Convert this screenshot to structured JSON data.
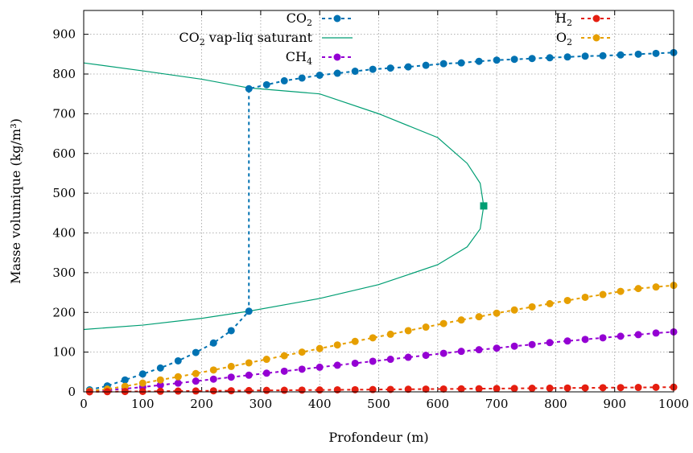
{
  "chart_data": {
    "type": "line",
    "xlabel": "Profondeur (m)",
    "ylabel": "Masse volumique (kg/m³)",
    "xlim": [
      0,
      1000
    ],
    "ylim": [
      0,
      960
    ],
    "x_ticks": [
      "0",
      "100",
      "200",
      "300",
      "400",
      "500",
      "600",
      "700",
      "800",
      "900",
      "1000"
    ],
    "y_ticks": [
      "0",
      "100",
      "200",
      "300",
      "400",
      "500",
      "600",
      "700",
      "800",
      "900"
    ],
    "grid": true,
    "legend_placement": "top",
    "series": [
      {
        "name": "CO2",
        "color": "#0072b2",
        "style": "dashed-points",
        "x": [
          10,
          40,
          70,
          100,
          130,
          160,
          190,
          220,
          250,
          280,
          280,
          310,
          340,
          370,
          400,
          430,
          460,
          490,
          520,
          550,
          580,
          610,
          640,
          670,
          700,
          730,
          760,
          790,
          820,
          850,
          880,
          910,
          940,
          970,
          1000
        ],
        "y": [
          5,
          15,
          30,
          45,
          60,
          78,
          99,
          123,
          154,
          203,
          763,
          773,
          783,
          790,
          797,
          802,
          807,
          812,
          815,
          818,
          822,
          826,
          828,
          832,
          835,
          837,
          839,
          841,
          843,
          845,
          846,
          848,
          850,
          852,
          854
        ]
      },
      {
        "name": "CO2 vap-liq saturant",
        "color": "#009e73",
        "style": "line",
        "x": [
          0,
          100,
          200,
          280,
          400,
          500,
          600,
          650,
          672,
          678,
          672,
          650,
          600,
          500,
          400,
          280,
          200,
          100,
          0
        ],
        "y": [
          157,
          168,
          185,
          203,
          235,
          270,
          320,
          365,
          410,
          468,
          525,
          575,
          640,
          700,
          750,
          765,
          787,
          808,
          828
        ]
      },
      {
        "name": "CH4",
        "color": "#9400d3",
        "style": "dashed-points",
        "x": [
          10,
          40,
          70,
          100,
          130,
          160,
          190,
          220,
          250,
          280,
          310,
          340,
          370,
          400,
          430,
          460,
          490,
          520,
          550,
          580,
          610,
          640,
          670,
          700,
          730,
          760,
          790,
          820,
          850,
          880,
          910,
          940,
          970,
          1000
        ],
        "y": [
          1,
          4,
          8,
          12,
          17,
          22,
          27,
          32,
          37,
          42,
          47,
          52,
          57,
          62,
          67,
          72,
          77,
          82,
          87,
          92,
          97,
          102,
          106,
          110,
          115,
          119,
          124,
          128,
          132,
          136,
          140,
          144,
          148,
          151
        ]
      },
      {
        "name": "H2",
        "color": "#e51e10",
        "style": "dashed-points",
        "x": [
          10,
          40,
          70,
          100,
          130,
          160,
          190,
          220,
          250,
          280,
          310,
          340,
          370,
          400,
          430,
          460,
          490,
          520,
          550,
          580,
          610,
          640,
          670,
          700,
          730,
          760,
          790,
          820,
          850,
          880,
          910,
          940,
          970,
          1000
        ],
        "y": [
          0.1,
          0.4,
          0.8,
          1.1,
          1.5,
          1.9,
          2.2,
          2.6,
          2.9,
          3.3,
          3.7,
          4.0,
          4.4,
          4.7,
          5.1,
          5.4,
          5.8,
          6.2,
          6.5,
          6.9,
          7.2,
          7.6,
          7.9,
          8.3,
          8.6,
          9.0,
          9.3,
          9.7,
          10.0,
          10.4,
          10.7,
          11.1,
          11.4,
          11.8
        ]
      },
      {
        "name": "O2",
        "color": "#e69f00",
        "style": "dashed-points",
        "x": [
          10,
          40,
          70,
          100,
          130,
          160,
          190,
          220,
          250,
          280,
          310,
          340,
          370,
          400,
          430,
          460,
          490,
          520,
          550,
          580,
          610,
          640,
          670,
          700,
          730,
          760,
          790,
          820,
          850,
          880,
          910,
          940,
          970,
          1000
        ],
        "y": [
          2,
          7,
          14,
          22,
          30,
          38,
          46,
          55,
          64,
          73,
          82,
          91,
          100,
          109,
          118,
          127,
          136,
          145,
          154,
          163,
          172,
          181,
          189,
          198,
          206,
          214,
          222,
          230,
          238,
          245,
          253,
          260,
          264,
          268
        ]
      }
    ],
    "markers": [
      {
        "name": "critical-point",
        "color": "#009e73",
        "x": 678,
        "y": 468
      }
    ],
    "legend": {
      "left": [
        {
          "series_index": 0,
          "label": "CO",
          "sub": "2",
          "suffix": ""
        },
        {
          "series_index": 1,
          "label": "CO",
          "sub": "2",
          "suffix": " vap-liq saturant"
        },
        {
          "series_index": 2,
          "label": "CH",
          "sub": "4",
          "suffix": ""
        }
      ],
      "right": [
        {
          "series_index": 3,
          "label": "H",
          "sub": "2",
          "suffix": ""
        },
        {
          "series_index": 4,
          "label": "O",
          "sub": "2",
          "suffix": ""
        }
      ]
    }
  }
}
